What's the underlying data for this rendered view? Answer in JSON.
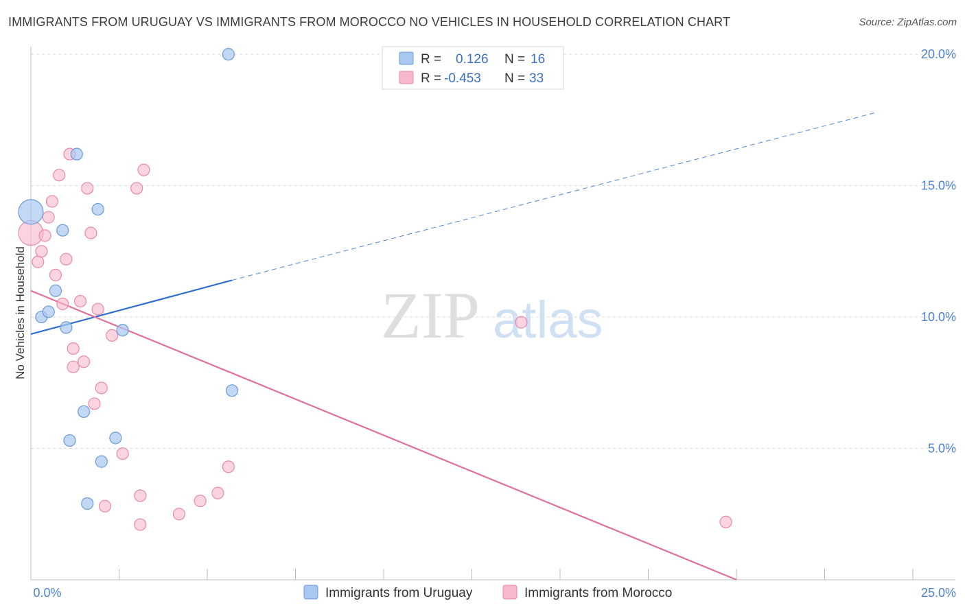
{
  "title": "IMMIGRANTS FROM URUGUAY VS IMMIGRANTS FROM MOROCCO NO VEHICLES IN HOUSEHOLD CORRELATION CHART",
  "source": "Source: ZipAtlas.com",
  "watermark": {
    "zip": "ZIP",
    "atlas": "atlas"
  },
  "colors": {
    "uruguay_fill": "#a9c8f0",
    "uruguay_stroke": "#6a9ad8",
    "uruguay_line": "#2f6fcf",
    "morocco_fill": "#f6b8cb",
    "morocco_stroke": "#e88aa8",
    "morocco_line": "#e0709a",
    "tick": "#4a7fd0",
    "grid": "#d9d9d9"
  },
  "legend": {
    "rows": [
      {
        "r_label": "R =",
        "r_value": "0.126",
        "n_label": "N =",
        "n_value": "16"
      },
      {
        "r_label": "R =",
        "r_value": "-0.453",
        "n_label": "N =",
        "n_value": "33"
      }
    ]
  },
  "chart_data": {
    "type": "scatter",
    "title": "IMMIGRANTS FROM URUGUAY VS IMMIGRANTS FROM MOROCCO NO VEHICLES IN HOUSEHOLD CORRELATION CHART",
    "xlabel": "",
    "ylabel": "No Vehicles in Household",
    "xlim": [
      0,
      25
    ],
    "ylim": [
      0,
      20.5
    ],
    "x_tick_labels": [
      "0.0%",
      "25.0%"
    ],
    "y_ticks": [
      5,
      10,
      15,
      20
    ],
    "y_tick_labels": [
      "5.0%",
      "10.0%",
      "15.0%",
      "20.0%"
    ],
    "legend_position": "bottom-center",
    "series": [
      {
        "name": "Immigrants from Uruguay",
        "points": [
          {
            "x": 0.0,
            "y": 14.0,
            "size": "large"
          },
          {
            "x": 0.3,
            "y": 10.0
          },
          {
            "x": 0.5,
            "y": 10.2
          },
          {
            "x": 0.7,
            "y": 11.0
          },
          {
            "x": 0.9,
            "y": 13.3
          },
          {
            "x": 1.0,
            "y": 9.6
          },
          {
            "x": 1.1,
            "y": 5.3
          },
          {
            "x": 1.3,
            "y": 16.2
          },
          {
            "x": 1.5,
            "y": 6.4
          },
          {
            "x": 1.6,
            "y": 2.9
          },
          {
            "x": 1.9,
            "y": 14.1
          },
          {
            "x": 2.0,
            "y": 4.5
          },
          {
            "x": 2.4,
            "y": 5.4
          },
          {
            "x": 2.6,
            "y": 9.5
          },
          {
            "x": 5.6,
            "y": 20.0
          },
          {
            "x": 5.7,
            "y": 7.2
          }
        ],
        "trend": {
          "x0": 0.0,
          "y0": 9.35,
          "x1": 5.7,
          "y1": 11.4,
          "x_dash_end": 24.0,
          "y_dash_end": 17.8
        }
      },
      {
        "name": "Immigrants from Morocco",
        "points": [
          {
            "x": 0.0,
            "y": 13.2,
            "size": "large"
          },
          {
            "x": 0.2,
            "y": 12.1
          },
          {
            "x": 0.3,
            "y": 12.5
          },
          {
            "x": 0.4,
            "y": 13.1
          },
          {
            "x": 0.5,
            "y": 13.8
          },
          {
            "x": 0.6,
            "y": 14.4
          },
          {
            "x": 0.7,
            "y": 11.6
          },
          {
            "x": 0.8,
            "y": 15.4
          },
          {
            "x": 0.9,
            "y": 10.5
          },
          {
            "x": 1.0,
            "y": 12.2
          },
          {
            "x": 1.1,
            "y": 16.2
          },
          {
            "x": 1.2,
            "y": 8.8
          },
          {
            "x": 1.2,
            "y": 8.1
          },
          {
            "x": 1.4,
            "y": 10.6
          },
          {
            "x": 1.5,
            "y": 8.3
          },
          {
            "x": 1.6,
            "y": 14.9
          },
          {
            "x": 1.7,
            "y": 13.2
          },
          {
            "x": 1.8,
            "y": 6.7
          },
          {
            "x": 1.9,
            "y": 10.3
          },
          {
            "x": 2.0,
            "y": 7.3
          },
          {
            "x": 2.1,
            "y": 2.8
          },
          {
            "x": 2.3,
            "y": 9.3
          },
          {
            "x": 2.6,
            "y": 4.8
          },
          {
            "x": 3.0,
            "y": 14.9
          },
          {
            "x": 3.1,
            "y": 3.2
          },
          {
            "x": 3.1,
            "y": 2.1
          },
          {
            "x": 3.2,
            "y": 15.6
          },
          {
            "x": 4.2,
            "y": 2.5
          },
          {
            "x": 4.8,
            "y": 3.0
          },
          {
            "x": 5.3,
            "y": 3.3
          },
          {
            "x": 5.6,
            "y": 4.3
          },
          {
            "x": 13.9,
            "y": 9.8
          },
          {
            "x": 19.7,
            "y": 2.2
          }
        ],
        "trend": {
          "x0": 0.0,
          "y0": 11.0,
          "x1": 20.0,
          "y1": 0.0
        }
      }
    ]
  }
}
